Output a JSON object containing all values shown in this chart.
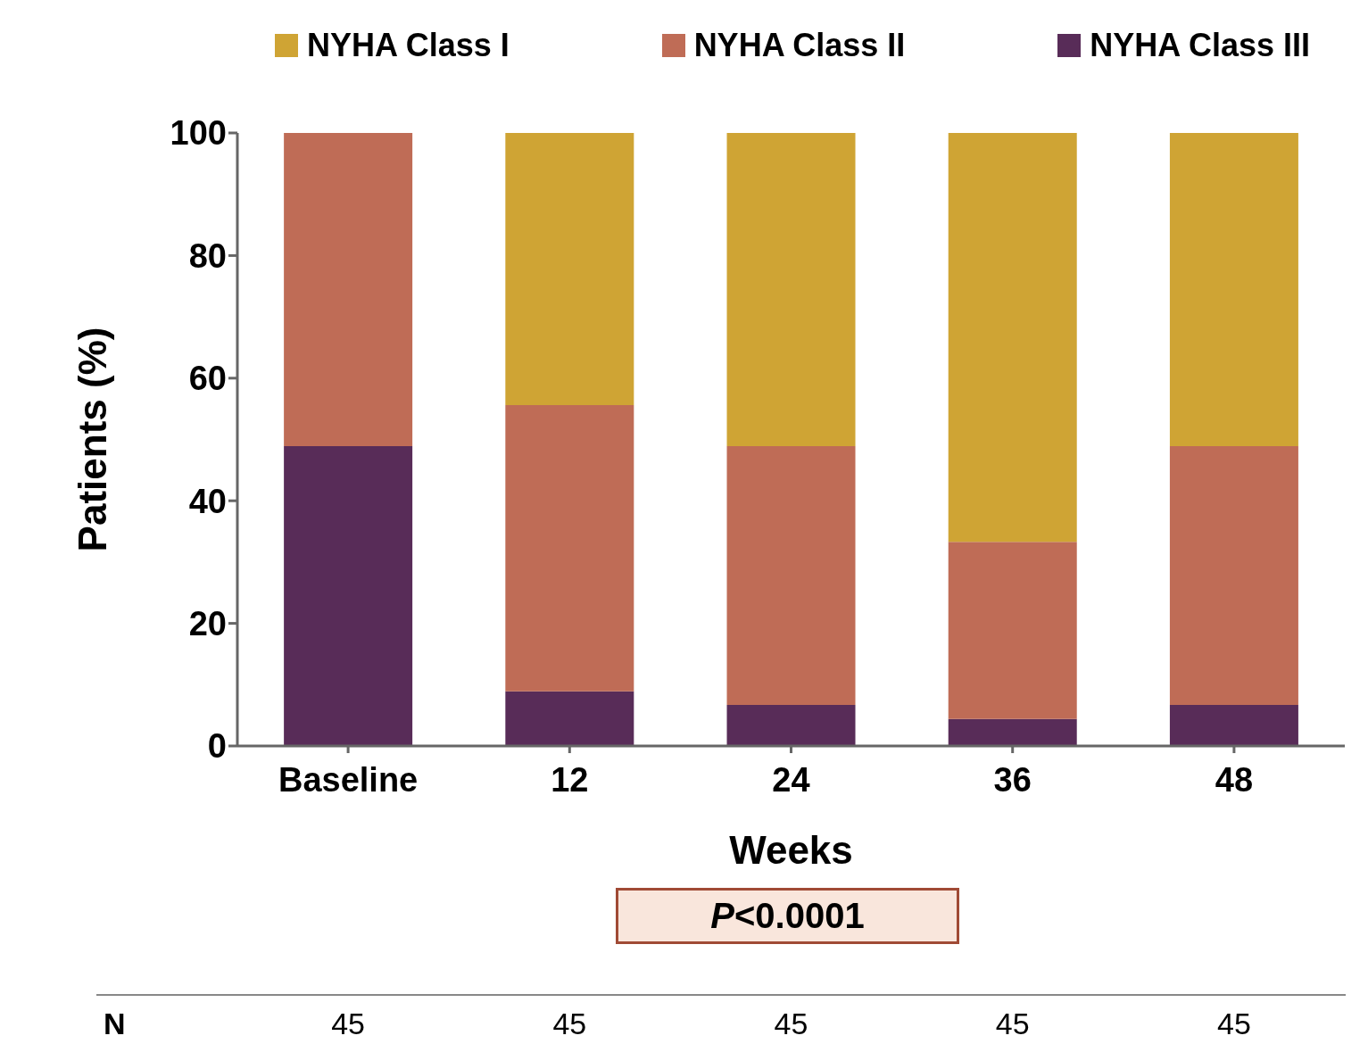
{
  "chart_data": {
    "type": "bar",
    "stacked": true,
    "ylabel": "Patients (%)",
    "xlabel": "Weeks",
    "categories": [
      "Baseline",
      "12",
      "24",
      "36",
      "48"
    ],
    "series": [
      {
        "name": "NYHA Class III",
        "color": "#582c58",
        "values": [
          48.9,
          8.9,
          6.7,
          4.4,
          6.7
        ]
      },
      {
        "name": "NYHA Class II",
        "color": "#bf6c56",
        "values": [
          51.1,
          46.7,
          42.2,
          28.9,
          42.2
        ]
      },
      {
        "name": "NYHA Class I",
        "color": "#cfa434",
        "values": [
          0,
          44.4,
          51.1,
          66.7,
          51.1
        ]
      }
    ],
    "ylim": [
      0,
      100
    ],
    "yticks": [
      0,
      20,
      40,
      60,
      80,
      100
    ],
    "grid": false,
    "legend": "top",
    "annotations": [
      "P<0.0001",
      "N",
      "45",
      "45",
      "45",
      "45",
      "45"
    ]
  }
}
